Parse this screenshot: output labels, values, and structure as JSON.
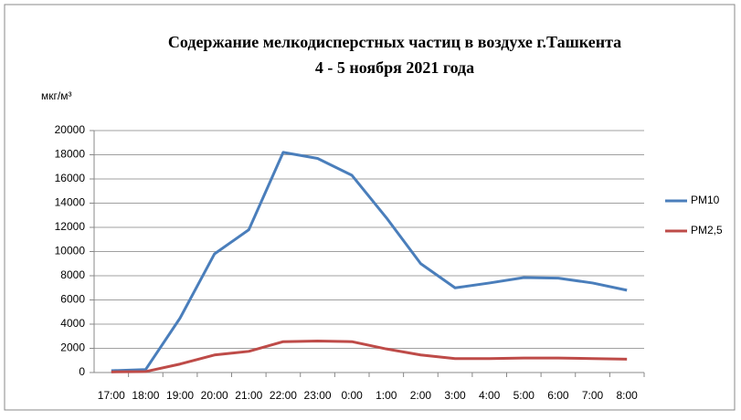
{
  "chart_data": {
    "type": "line",
    "title": "Содержание мелкодисперстных частиц в воздухе г.Ташкента",
    "subtitle": "4 - 5 ноября 2021 года",
    "y_label": "мкг/м³",
    "categories": [
      "17:00",
      "18:00",
      "19:00",
      "20:00",
      "21:00",
      "22:00",
      "23:00",
      "0:00",
      "1:00",
      "2:00",
      "3:00",
      "4:00",
      "5:00",
      "6:00",
      "7:00",
      "8:00"
    ],
    "series": [
      {
        "name": "PM10",
        "color": "#4a7ebb",
        "values": [
          150,
          250,
          4500,
          9800,
          11800,
          18200,
          17700,
          16300,
          12800,
          9000,
          7000,
          7400,
          7850,
          7800,
          7400,
          6800
        ]
      },
      {
        "name": "PM2,5",
        "color": "#be4b48",
        "values": [
          50,
          80,
          700,
          1450,
          1750,
          2550,
          2600,
          2550,
          1950,
          1450,
          1150,
          1150,
          1200,
          1200,
          1150,
          1100
        ]
      }
    ],
    "ylim": [
      0,
      20000
    ],
    "yticks": [
      0,
      2000,
      4000,
      6000,
      8000,
      10000,
      12000,
      14000,
      16000,
      18000,
      20000
    ],
    "grid": true,
    "legend": "right"
  }
}
